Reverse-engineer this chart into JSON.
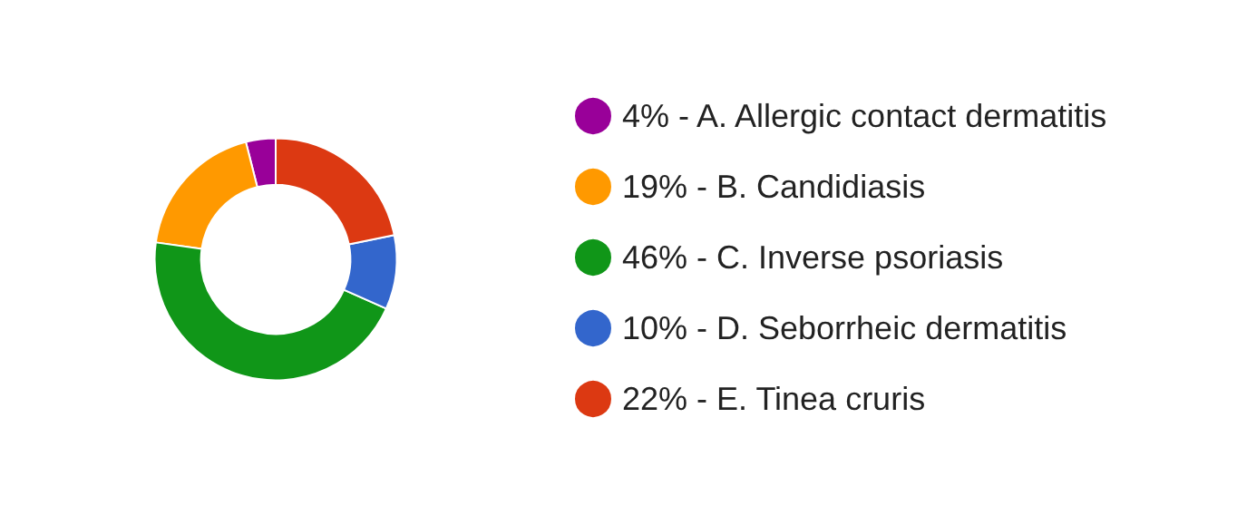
{
  "chart_data": {
    "type": "donut",
    "categories": [
      "4% - A. Allergic contact dermatitis",
      "19% - B. Candidiasis",
      "46% - C. Inverse psoriasis",
      "10% - D. Seborrheic dermatitis",
      "22% - E. Tinea cruris"
    ],
    "values": [
      4,
      19,
      46,
      10,
      22
    ],
    "colors": [
      "#990099",
      "#ff9900",
      "#109618",
      "#3366cc",
      "#dc3912"
    ],
    "legend": "right"
  }
}
